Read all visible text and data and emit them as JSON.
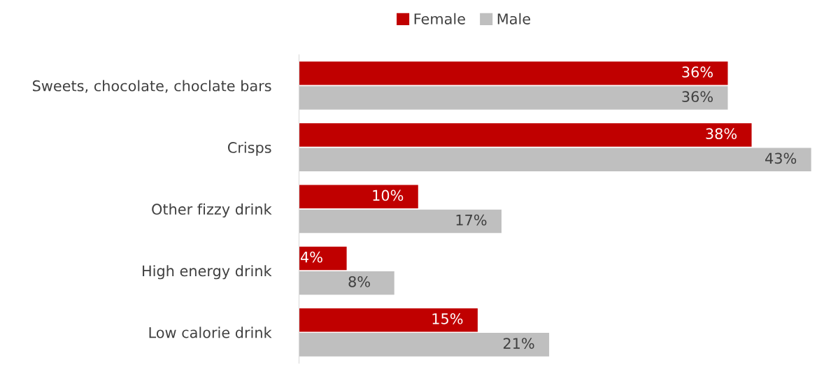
{
  "chart_data": {
    "type": "bar",
    "orientation": "horizontal",
    "categories": [
      "Sweets, chocolate, choclate bars",
      "Crisps",
      "Other fizzy drink",
      "High energy drink",
      "Low calorie drink"
    ],
    "series": [
      {
        "name": "Female",
        "color": "#c00000",
        "values": [
          36,
          38,
          10,
          4,
          15
        ],
        "value_labels": [
          "36%",
          "38%",
          "10%",
          "4%",
          "15%"
        ]
      },
      {
        "name": "Male",
        "color": "#bfbfbf",
        "values": [
          36,
          43,
          17,
          8,
          21
        ],
        "value_labels": [
          "36%",
          "43%",
          "17%",
          "8%",
          "21%"
        ]
      }
    ],
    "legend": "top",
    "grid": false
  }
}
